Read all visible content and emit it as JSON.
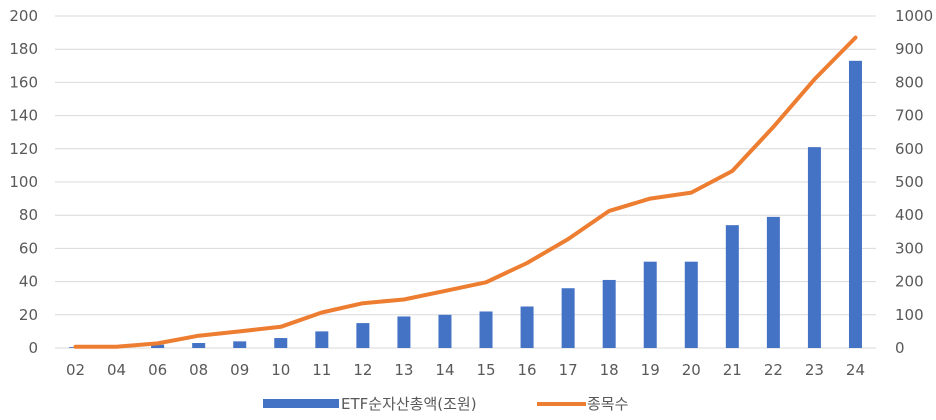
{
  "chart_data": {
    "type": "bar",
    "categories": [
      "02",
      "04",
      "06",
      "08",
      "09",
      "10",
      "11",
      "12",
      "13",
      "14",
      "15",
      "16",
      "17",
      "18",
      "19",
      "20",
      "21",
      "22",
      "23",
      "24"
    ],
    "series": [
      {
        "name": "ETF순자산총액(조원)",
        "type": "bar",
        "axis": "left",
        "color": "#4472C4",
        "values": [
          0.5,
          0.5,
          2,
          3,
          4,
          6,
          10,
          15,
          19,
          20,
          22,
          25,
          36,
          41,
          52,
          52,
          74,
          79,
          121,
          173
        ]
      },
      {
        "name": "종목수",
        "type": "line",
        "axis": "right",
        "color": "#ED7D31",
        "values": [
          4,
          4,
          14,
          37,
          50,
          64,
          107,
          135,
          146,
          172,
          198,
          256,
          328,
          413,
          450,
          468,
          533,
          666,
          809,
          935
        ]
      }
    ],
    "y_left": {
      "min": 0,
      "max": 200,
      "ticks": [
        "0",
        "20",
        "40",
        "60",
        "80",
        "100",
        "120",
        "140",
        "160",
        "180",
        "200"
      ]
    },
    "y_right": {
      "min": 0,
      "max": 1000,
      "ticks": [
        "0",
        "100",
        "200",
        "300",
        "400",
        "500",
        "600",
        "700",
        "800",
        "900",
        "1000"
      ]
    },
    "grid": true,
    "legend_position": "bottom"
  },
  "legend": {
    "bar_label": "ETF순자산총액(조원)",
    "line_label": "종목수"
  }
}
